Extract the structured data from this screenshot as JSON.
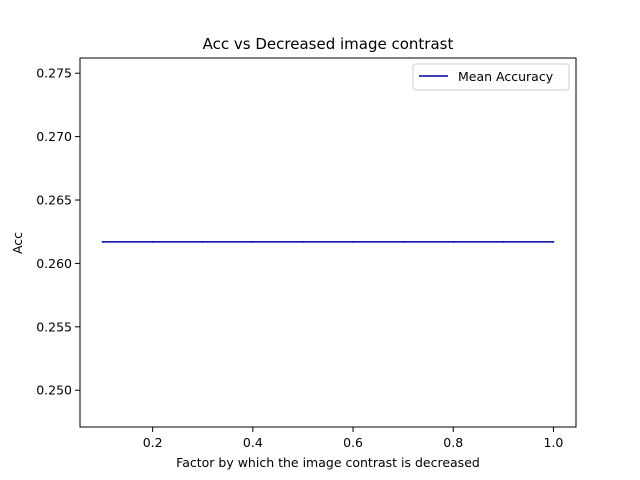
{
  "chart_data": {
    "type": "line",
    "title": "Acc vs Decreased image contrast",
    "xlabel": "Factor by which the image contrast is decreased",
    "ylabel": "Acc",
    "xlim": [
      0.055,
      1.045
    ],
    "ylim": [
      0.2471,
      0.2762
    ],
    "xticks": [
      0.2,
      0.4,
      0.6,
      0.8,
      1.0
    ],
    "xtick_labels": [
      "0.2",
      "0.4",
      "0.6",
      "0.8",
      "1.0"
    ],
    "yticks": [
      0.25,
      0.255,
      0.26,
      0.265,
      0.27,
      0.275
    ],
    "ytick_labels": [
      "0.250",
      "0.255",
      "0.260",
      "0.265",
      "0.270",
      "0.275"
    ],
    "grid": false,
    "legend_position": "top-right",
    "series": [
      {
        "name": "Mean Accuracy",
        "color": "#0000aa",
        "x": [
          0.1,
          0.2,
          0.3,
          0.4,
          0.5,
          0.6,
          0.7,
          0.8,
          0.9,
          1.0
        ],
        "y": [
          0.2617,
          0.2617,
          0.2617,
          0.2617,
          0.2617,
          0.2617,
          0.2617,
          0.2617,
          0.2617,
          0.2617
        ]
      }
    ]
  }
}
